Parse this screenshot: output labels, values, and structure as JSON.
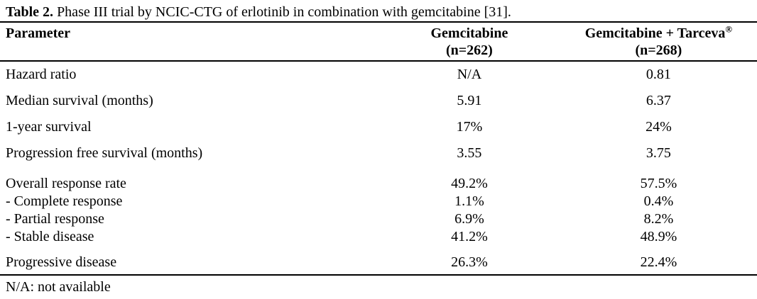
{
  "caption": {
    "label": "Table 2.",
    "text": " Phase III trial by NCIC-CTG of erlotinib in combination with gemcitabine [31]."
  },
  "table": {
    "columns": [
      {
        "label": "Parameter"
      },
      {
        "label": "Gemcitabine",
        "n": "(n=262)"
      },
      {
        "label": "Gemcitabine + Tarceva",
        "sup": "®",
        "n": "(n=268)"
      }
    ],
    "rows": [
      {
        "parameter": "Hazard ratio",
        "gemcitabine": "N/A",
        "gemcitabine_tarceva": "0.81"
      },
      {
        "parameter": "Median survival (months)",
        "gemcitabine": "5.91",
        "gemcitabine_tarceva": "6.37"
      },
      {
        "parameter": "1-year survival",
        "gemcitabine": "17%",
        "gemcitabine_tarceva": "24%"
      },
      {
        "parameter": "Progression free survival (months)",
        "gemcitabine": "3.55",
        "gemcitabine_tarceva": "3.75"
      },
      {
        "parameter": "Overall response rate",
        "gemcitabine": "49.2%",
        "gemcitabine_tarceva": "57.5%"
      },
      {
        "parameter": "- Complete response",
        "gemcitabine": "1.1%",
        "gemcitabine_tarceva": "0.4%"
      },
      {
        "parameter": "- Partial response",
        "gemcitabine": "6.9%",
        "gemcitabine_tarceva": "8.2%"
      },
      {
        "parameter": "- Stable disease",
        "gemcitabine": "41.2%",
        "gemcitabine_tarceva": "48.9%"
      },
      {
        "parameter": "Progressive disease",
        "gemcitabine": "26.3%",
        "gemcitabine_tarceva": "22.4%"
      }
    ]
  },
  "footnote": "N/A: not available",
  "colors": {
    "text": "#000000",
    "background": "#ffffff",
    "rule": "#000000"
  }
}
